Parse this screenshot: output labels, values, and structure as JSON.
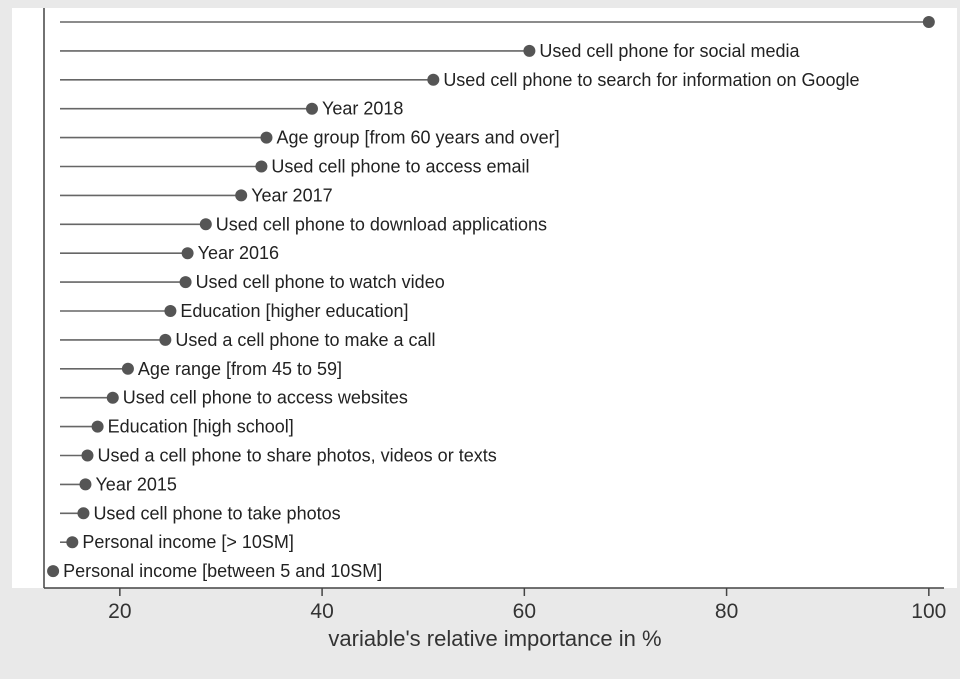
{
  "chart_data": {
    "type": "lollipop",
    "orientation": "horizontal",
    "xlabel": "variable's relative importance in %",
    "ylabel": "",
    "title": "",
    "xlim": [
      12.5,
      101.5
    ],
    "xticks": [
      20,
      40,
      60,
      80,
      100
    ],
    "grid": false,
    "legend": "none",
    "colors": {
      "panel": "#e9e9e9",
      "plot": "#ffffff",
      "marker": "#555555",
      "text": "#222222"
    },
    "items": [
      {
        "label": "",
        "value": 100
      },
      {
        "label": "Used cell phone for social media",
        "value": 60.5
      },
      {
        "label": "Used cell phone to search for information on Google",
        "value": 51
      },
      {
        "label": "Year 2018",
        "value": 39
      },
      {
        "label": "Age group [from 60 years and over]",
        "value": 34.5
      },
      {
        "label": "Used cell phone to access email",
        "value": 34
      },
      {
        "label": "Year 2017",
        "value": 32
      },
      {
        "label": "Used cell phone to download applications",
        "value": 28.5
      },
      {
        "label": "Year 2016",
        "value": 26.7
      },
      {
        "label": "Used cell phone to watch video",
        "value": 26.5
      },
      {
        "label": "Education [higher education]",
        "value": 25
      },
      {
        "label": "Used a cell phone to make a call",
        "value": 24.5
      },
      {
        "label": "Age range [from 45 to 59]",
        "value": 20.8
      },
      {
        "label": "Used cell phone to access websites",
        "value": 19.3
      },
      {
        "label": "Education [high school]",
        "value": 17.8
      },
      {
        "label": "Used a cell phone to share photos, videos or texts",
        "value": 16.8
      },
      {
        "label": "Year 2015",
        "value": 16.6
      },
      {
        "label": "Used cell phone to take photos",
        "value": 16.4
      },
      {
        "label": "Personal income [> 10SM]",
        "value": 15.3
      },
      {
        "label": "Personal income [between 5 and 10SM]",
        "value": 13.4
      }
    ]
  }
}
